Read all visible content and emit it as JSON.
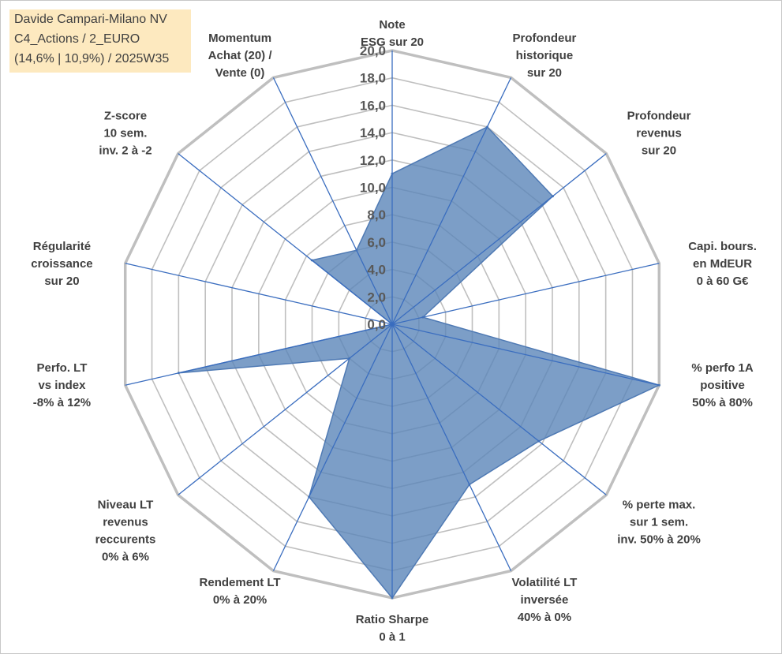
{
  "info": {
    "line1": "Davide Campari-Milano NV",
    "line2": "C4_Actions / 2_EURO",
    "line3": "(14,6% | 10,9%) / 2025W35"
  },
  "chart_data": {
    "type": "radar",
    "rmin": 0,
    "rmax": 20,
    "tick_step": 2,
    "ticks": [
      "0,0",
      "2,0",
      "4,0",
      "6,0",
      "8,0",
      "10,0",
      "12,0",
      "14,0",
      "16,0",
      "18,0",
      "20,0"
    ],
    "axes": [
      [
        "Note",
        "ESG sur 20"
      ],
      [
        "Profondeur",
        "historique",
        "sur 20"
      ],
      [
        "Profondeur",
        "revenus",
        "sur 20"
      ],
      [
        "Capi. bours.",
        "en MdEUR",
        "0 à 60 G€"
      ],
      [
        "% perfo 1A",
        "positive",
        "50% à 80%"
      ],
      [
        "% perte max.",
        "sur 1 sem.",
        "inv. 50% à 20%"
      ],
      [
        "Volatilité LT",
        "inversée",
        "40% à 0%"
      ],
      [
        "Ratio Sharpe",
        "0 à 1"
      ],
      [
        "Rendement LT",
        "0% à 20%"
      ],
      [
        "Niveau LT",
        "revenus",
        "reccurents",
        "0% à 6%"
      ],
      [
        "Perfo. LT",
        "vs index",
        "-8% à 12%"
      ],
      [
        "Régularité",
        "croissance",
        "sur 20"
      ],
      [
        "Z-score",
        "10 sem.",
        "inv. 2 à -2"
      ],
      [
        "Momentum",
        "Achat (20) /",
        "Vente (0)"
      ]
    ],
    "series": [
      {
        "values": [
          11,
          16,
          15,
          2.3,
          20,
          13.7,
          13,
          20,
          14,
          4,
          16,
          0,
          7.5,
          6
        ]
      }
    ],
    "colors": {
      "fill": "#5b86b9",
      "stroke": "#4f7ab4",
      "axis": "#3a6dbf",
      "grid": "#bfbfbf"
    }
  }
}
